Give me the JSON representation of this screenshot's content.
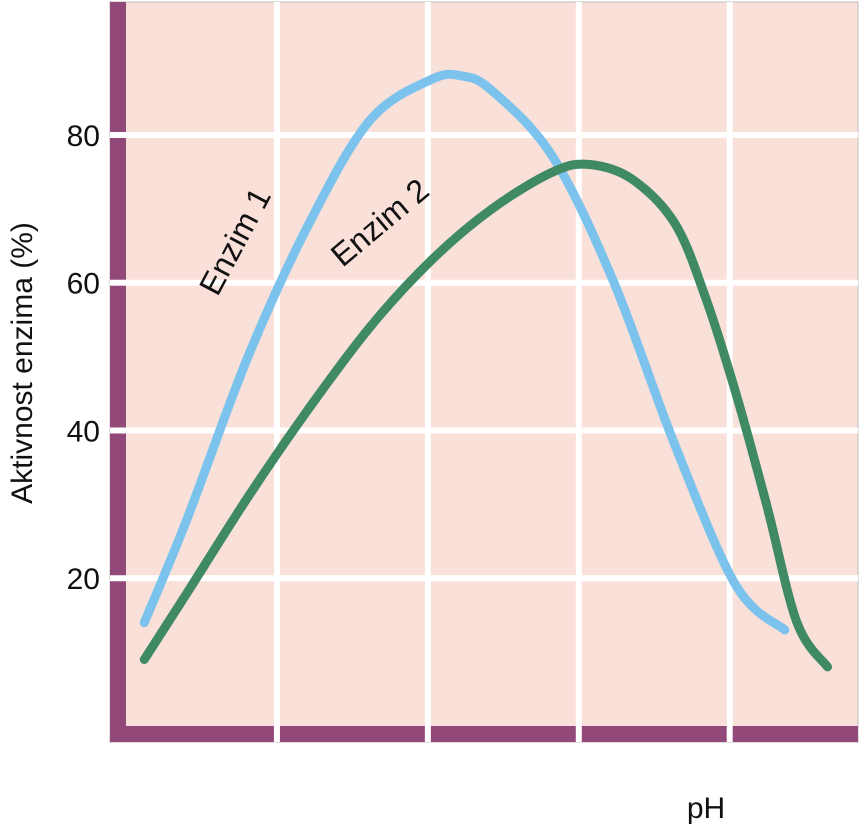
{
  "chart_data": {
    "type": "line",
    "title": "",
    "xlabel": "pH",
    "ylabel": "Aktivnost enzima (%)",
    "ylim": [
      0,
      98
    ],
    "yticks": [
      20,
      40,
      60,
      80
    ],
    "grid": true,
    "colors": {
      "plot_background": "#f9e0d9",
      "axis_bar": "#93487a",
      "grid": "#ffffff"
    },
    "series": [
      {
        "name": "Enzim 1",
        "color": "#7bc3ec",
        "points": [
          [
            0.3,
            14
          ],
          [
            1.0,
            28
          ],
          [
            2.0,
            50
          ],
          [
            3.0,
            68
          ],
          [
            4.0,
            82
          ],
          [
            5.0,
            87.5
          ],
          [
            5.5,
            88
          ],
          [
            6.0,
            86
          ],
          [
            7.0,
            77
          ],
          [
            8.0,
            60
          ],
          [
            9.0,
            38
          ],
          [
            10.0,
            19
          ],
          [
            10.8,
            13
          ]
        ]
      },
      {
        "name": "Enzim 2",
        "color": "#3f8a63",
        "points": [
          [
            0.3,
            9
          ],
          [
            1.0,
            18
          ],
          [
            2.0,
            31
          ],
          [
            3.0,
            43
          ],
          [
            4.0,
            54
          ],
          [
            5.0,
            63
          ],
          [
            6.0,
            70
          ],
          [
            7.0,
            75
          ],
          [
            7.6,
            76
          ],
          [
            8.3,
            74
          ],
          [
            9.0,
            68
          ],
          [
            9.5,
            58
          ],
          [
            10.0,
            45
          ],
          [
            10.5,
            30
          ],
          [
            11.0,
            14
          ],
          [
            11.5,
            8
          ]
        ]
      }
    ]
  }
}
